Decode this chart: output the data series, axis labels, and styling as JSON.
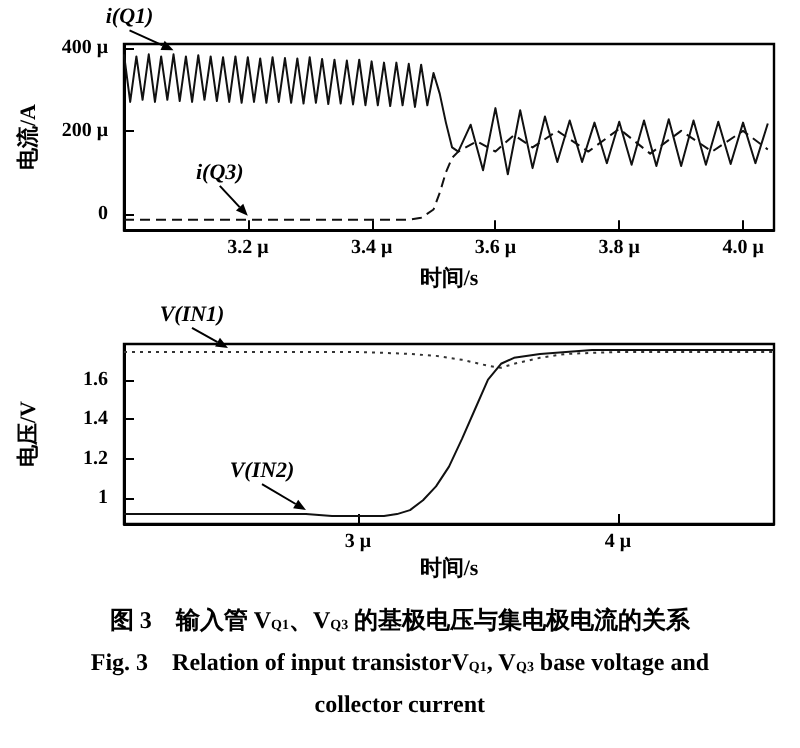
{
  "chart_data": [
    {
      "type": "line",
      "xlabel": "时间/s",
      "ylabel": "电流/A",
      "xlim": [
        3.0,
        4.05
      ],
      "ylim": [
        -40,
        410
      ],
      "xticks": [
        {
          "value": 3.2,
          "label": "3.2 μ"
        },
        {
          "value": 3.4,
          "label": "3.4 μ"
        },
        {
          "value": 3.6,
          "label": "3.6 μ"
        },
        {
          "value": 3.8,
          "label": "3.8 μ"
        },
        {
          "value": 4.0,
          "label": "4.0 μ"
        }
      ],
      "yticks": [
        0,
        {
          "value": 200,
          "label": "200 μ"
        },
        {
          "value": 400,
          "label": "400 μ"
        }
      ],
      "grid": false,
      "legend": false,
      "marker": "none",
      "series": [
        {
          "name": "i(Q1)",
          "color": "#111111",
          "line_style": "solid",
          "x": [
            3.0,
            3.01,
            3.02,
            3.03,
            3.04,
            3.05,
            3.06,
            3.07,
            3.08,
            3.09,
            3.1,
            3.11,
            3.12,
            3.13,
            3.14,
            3.15,
            3.16,
            3.17,
            3.18,
            3.19,
            3.2,
            3.21,
            3.22,
            3.23,
            3.24,
            3.25,
            3.26,
            3.27,
            3.28,
            3.29,
            3.3,
            3.31,
            3.32,
            3.33,
            3.34,
            3.35,
            3.36,
            3.37,
            3.38,
            3.39,
            3.4,
            3.41,
            3.42,
            3.43,
            3.44,
            3.45,
            3.46,
            3.47,
            3.48,
            3.49,
            3.5,
            3.51,
            3.52,
            3.53,
            3.54,
            3.56,
            3.58,
            3.6,
            3.62,
            3.64,
            3.66,
            3.68,
            3.7,
            3.72,
            3.74,
            3.76,
            3.78,
            3.8,
            3.82,
            3.84,
            3.86,
            3.88,
            3.9,
            3.92,
            3.94,
            3.96,
            3.98,
            4.0,
            4.02,
            4.04
          ],
          "values": [
            385,
            270,
            380,
            275,
            385,
            270,
            380,
            275,
            385,
            272,
            380,
            270,
            383,
            275,
            380,
            272,
            378,
            270,
            380,
            268,
            378,
            270,
            375,
            268,
            378,
            270,
            376,
            268,
            375,
            266,
            378,
            268,
            374,
            265,
            372,
            266,
            370,
            264,
            372,
            262,
            368,
            262,
            365,
            260,
            365,
            262,
            362,
            258,
            360,
            262,
            340,
            290,
            220,
            160,
            150,
            215,
            105,
            255,
            95,
            250,
            110,
            235,
            125,
            225,
            125,
            220,
            122,
            222,
            118,
            225,
            115,
            228,
            115,
            225,
            118,
            222,
            120,
            220,
            122,
            218
          ]
        },
        {
          "name": "i(Q3)",
          "color": "#111111",
          "line_style": "dashed",
          "x": [
            3.0,
            3.1,
            3.2,
            3.3,
            3.4,
            3.46,
            3.48,
            3.5,
            3.51,
            3.52,
            3.53,
            3.54,
            3.57,
            3.6,
            3.63,
            3.66,
            3.7,
            3.75,
            3.8,
            3.85,
            3.9,
            3.95,
            4.0,
            4.04
          ],
          "values": [
            -15,
            -15,
            -15,
            -15,
            -15,
            -15,
            -10,
            10,
            50,
            100,
            135,
            150,
            175,
            150,
            190,
            160,
            200,
            150,
            205,
            145,
            200,
            150,
            200,
            155
          ]
        }
      ]
    },
    {
      "type": "line",
      "xlabel": "时间/s",
      "ylabel": "电压/V",
      "xlim": [
        2.1,
        4.6
      ],
      "ylim": [
        0.87,
        1.78
      ],
      "xticks": [
        {
          "value": 3,
          "label": "3 μ"
        },
        {
          "value": 4,
          "label": "4 μ"
        }
      ],
      "yticks": [
        1,
        1.2,
        1.4,
        1.6
      ],
      "grid": false,
      "legend": false,
      "marker": "none",
      "annotations": [
        "图 3　输入管 V$_{Q1}$、V$_{Q3}$ 的基极电压与集电极电流的关系",
        "Fig. 3　Relation of input transistorV$_{Q1}$, V$_{Q3}$ base voltage and",
        "collector current"
      ],
      "series": [
        {
          "name": "V(IN1)",
          "color": "#333333",
          "line_style": "dotted",
          "x": [
            2.1,
            2.5,
            3.0,
            3.2,
            3.3,
            3.4,
            3.5,
            3.55,
            3.6,
            3.7,
            3.8,
            4.0,
            4.6
          ],
          "values": [
            1.74,
            1.74,
            1.74,
            1.73,
            1.72,
            1.7,
            1.67,
            1.66,
            1.68,
            1.71,
            1.73,
            1.74,
            1.74
          ]
        },
        {
          "name": "V(IN2)",
          "color": "#111111",
          "line_style": "solid",
          "x": [
            2.1,
            2.8,
            2.9,
            3.1,
            3.15,
            3.2,
            3.25,
            3.3,
            3.35,
            3.4,
            3.45,
            3.5,
            3.55,
            3.6,
            3.7,
            3.8,
            3.9,
            4.6
          ],
          "values": [
            0.92,
            0.92,
            0.91,
            0.91,
            0.92,
            0.94,
            0.99,
            1.06,
            1.16,
            1.3,
            1.45,
            1.6,
            1.68,
            1.71,
            1.73,
            1.74,
            1.75,
            1.75
          ]
        }
      ]
    }
  ]
}
